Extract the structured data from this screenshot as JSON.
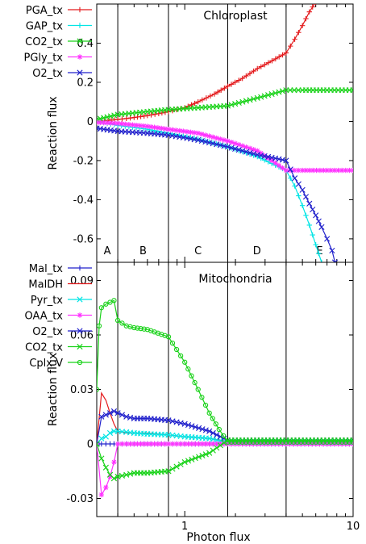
{
  "chart_data": [
    {
      "type": "line",
      "title": "Chloroplast",
      "ylabel": "Reaction flux",
      "xlabel": "",
      "xscale": "log",
      "xlim": [
        0.3,
        10
      ],
      "ylim": [
        -0.72,
        0.6
      ],
      "yticks": [
        0.4,
        0.2,
        0,
        -0.2,
        -0.4,
        -0.6
      ],
      "ytick_labels": [
        "0.4",
        "0.2",
        "0",
        "-0.2",
        "-0.4",
        "-0.6"
      ],
      "grid": false,
      "legend": "outside-left",
      "regions": {
        "labels": [
          "A",
          "B",
          "C",
          "D",
          "E"
        ],
        "boundaries": [
          0.4,
          0.8,
          1.8,
          4.0
        ]
      },
      "series": [
        {
          "name": "PGA_tx",
          "color": "#e41a1c",
          "marker": "+",
          "x": [
            0.3,
            0.35,
            0.4,
            0.45,
            0.5,
            0.6,
            0.7,
            0.8,
            1.0,
            1.2,
            1.5,
            1.8,
            2.2,
            2.7,
            3.3,
            4.0,
            4.5,
            5.0,
            5.5,
            6.0
          ],
          "y": [
            0.0,
            0.005,
            0.01,
            0.015,
            0.02,
            0.03,
            0.04,
            0.05,
            0.07,
            0.1,
            0.14,
            0.18,
            0.22,
            0.27,
            0.31,
            0.35,
            0.42,
            0.49,
            0.56,
            0.61
          ]
        },
        {
          "name": "GAP_tx",
          "color": "#00e5e5",
          "marker": "+",
          "x": [
            0.3,
            0.4,
            0.6,
            0.8,
            1.2,
            1.8,
            2.7,
            4.0,
            4.5,
            5.0,
            5.5,
            6.0,
            6.5
          ],
          "y": [
            0.0,
            -0.02,
            -0.04,
            -0.06,
            -0.09,
            -0.13,
            -0.18,
            -0.25,
            -0.33,
            -0.43,
            -0.53,
            -0.63,
            -0.72
          ]
        },
        {
          "name": "CO2_tx",
          "color": "#19d219",
          "marker": "x",
          "x": [
            0.3,
            0.4,
            0.6,
            0.8,
            1.2,
            1.8,
            2.7,
            4.0,
            5.0,
            7.0,
            10.0
          ],
          "y": [
            0.01,
            0.035,
            0.05,
            0.06,
            0.07,
            0.08,
            0.12,
            0.16,
            0.16,
            0.16,
            0.16
          ]
        },
        {
          "name": "PGly_tx",
          "color": "#ff33ff",
          "marker": "*",
          "x": [
            0.3,
            0.4,
            0.6,
            0.8,
            1.2,
            1.8,
            2.7,
            4.0,
            5.0,
            7.0,
            10.0
          ],
          "y": [
            -0.005,
            -0.01,
            -0.025,
            -0.04,
            -0.06,
            -0.1,
            -0.15,
            -0.25,
            -0.25,
            -0.25,
            -0.25
          ]
        },
        {
          "name": "O2_tx",
          "color": "#2222cc",
          "marker": "x",
          "x": [
            0.3,
            0.4,
            0.6,
            0.8,
            1.2,
            1.8,
            2.7,
            4.0,
            4.5,
            5.0,
            5.5,
            6.0,
            6.5,
            7.0,
            7.5,
            7.8
          ],
          "y": [
            -0.035,
            -0.05,
            -0.06,
            -0.07,
            -0.095,
            -0.13,
            -0.17,
            -0.2,
            -0.29,
            -0.35,
            -0.42,
            -0.48,
            -0.54,
            -0.6,
            -0.66,
            -0.72
          ]
        }
      ]
    },
    {
      "type": "line",
      "title": "Mitochondria",
      "ylabel": "Reaction flux",
      "xlabel": "Photon flux",
      "xscale": "log",
      "xlim": [
        0.3,
        10
      ],
      "ylim": [
        -0.04,
        0.1
      ],
      "xticks": [
        1,
        10
      ],
      "xtick_labels": [
        "1",
        "10"
      ],
      "yticks": [
        0.09,
        0.06,
        0.03,
        0,
        -0.03
      ],
      "ytick_labels": [
        "0.09",
        "0.06",
        "0.03",
        "0",
        "-0.03"
      ],
      "grid": false,
      "legend": "outside-left",
      "regions": {
        "labels": [
          "A",
          "B",
          "C",
          "D",
          "E"
        ],
        "boundaries": [
          0.4,
          0.8,
          1.8,
          4.0
        ]
      },
      "series": [
        {
          "name": "Mal_tx",
          "color": "#2222cc",
          "marker": "+",
          "x": [
            0.3,
            0.31,
            0.32,
            0.34,
            0.36,
            0.38,
            0.4,
            0.45,
            0.5,
            0.6,
            0.8,
            1.0,
            1.4,
            1.8,
            4.0,
            10.0
          ],
          "y": [
            0.0,
            0.0,
            0.0,
            0.0,
            0.0,
            0.0,
            0.0,
            0.0,
            0.0,
            0.0,
            0.0,
            0.0,
            0.0,
            0.0,
            0.0,
            0.0
          ]
        },
        {
          "name": "MalDH",
          "color": "#e41a1c",
          "marker": "",
          "x": [
            0.3,
            0.32,
            0.34,
            0.36,
            0.38,
            0.4,
            0.45,
            0.5,
            0.6,
            0.8,
            1.0,
            1.4,
            1.8,
            4.0,
            10.0
          ],
          "y": [
            0.0,
            0.028,
            0.024,
            0.017,
            0.011,
            0.007,
            0.006,
            0.006,
            0.006,
            0.005,
            0.004,
            0.003,
            0.0015,
            0.0015,
            0.0015
          ]
        },
        {
          "name": "Pyr_tx",
          "color": "#00e5e5",
          "marker": "x",
          "x": [
            0.3,
            0.32,
            0.34,
            0.36,
            0.38,
            0.4,
            0.45,
            0.5,
            0.6,
            0.8,
            1.0,
            1.4,
            1.8,
            4.0,
            10.0
          ],
          "y": [
            0.0,
            0.003,
            0.004,
            0.006,
            0.007,
            0.007,
            0.0065,
            0.006,
            0.0055,
            0.005,
            0.004,
            0.003,
            0.001,
            0.001,
            0.001
          ]
        },
        {
          "name": "OAA_tx",
          "color": "#ff33ff",
          "marker": "*",
          "x": [
            0.3,
            0.32,
            0.34,
            0.36,
            0.38,
            0.4,
            0.45,
            0.5,
            0.6,
            0.8,
            1.0,
            1.4,
            1.8,
            4.0,
            10.0
          ],
          "y": [
            0.0,
            -0.028,
            -0.024,
            -0.018,
            -0.01,
            0.0,
            0.0,
            0.0,
            0.0,
            0.0,
            0.0,
            0.0,
            0.0,
            0.0,
            0.0
          ]
        },
        {
          "name": "O2_tx",
          "color": "#2222cc",
          "marker": "x",
          "x": [
            0.3,
            0.32,
            0.34,
            0.36,
            0.38,
            0.4,
            0.45,
            0.5,
            0.6,
            0.8,
            1.0,
            1.4,
            1.8,
            4.0,
            10.0
          ],
          "y": [
            0.0,
            0.015,
            0.016,
            0.017,
            0.018,
            0.017,
            0.015,
            0.014,
            0.014,
            0.013,
            0.011,
            0.007,
            0.002,
            0.002,
            0.002
          ]
        },
        {
          "name": "CO2_tx",
          "color": "#19d219",
          "marker": "x",
          "x": [
            0.3,
            0.32,
            0.34,
            0.36,
            0.38,
            0.4,
            0.45,
            0.5,
            0.6,
            0.8,
            1.0,
            1.4,
            1.8,
            4.0,
            10.0
          ],
          "y": [
            0.0,
            -0.008,
            -0.013,
            -0.017,
            -0.019,
            -0.018,
            -0.017,
            -0.016,
            -0.016,
            -0.015,
            -0.01,
            -0.005,
            0.002,
            0.002,
            0.002
          ]
        },
        {
          "name": "Cplx V",
          "color": "#19d219",
          "marker": "o",
          "x": [
            0.3,
            0.31,
            0.32,
            0.34,
            0.36,
            0.38,
            0.4,
            0.45,
            0.5,
            0.6,
            0.8,
            1.0,
            1.2,
            1.4,
            1.6,
            1.8,
            4.0,
            10.0
          ],
          "y": [
            0.03,
            0.065,
            0.075,
            0.077,
            0.078,
            0.079,
            0.068,
            0.065,
            0.064,
            0.063,
            0.059,
            0.045,
            0.03,
            0.017,
            0.008,
            0.001,
            0.001,
            0.001
          ]
        }
      ]
    }
  ]
}
